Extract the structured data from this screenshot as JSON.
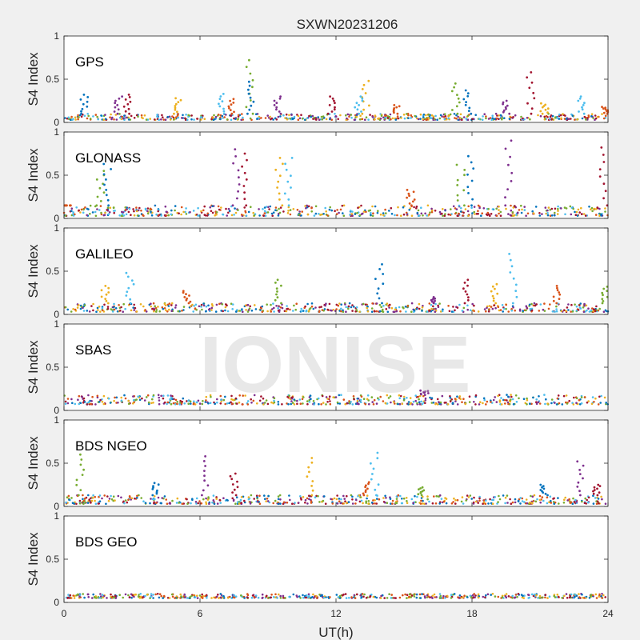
{
  "figure": {
    "title": "SXWN20231206",
    "watermark": "IONISE",
    "xlabel": "UT(h)",
    "xticks": [
      0,
      6,
      12,
      18,
      24
    ],
    "xlim": [
      0,
      24
    ]
  },
  "series_colors": [
    "#0072BD",
    "#D95319",
    "#EDB120",
    "#7E2F8E",
    "#77AC30",
    "#4DBEEE",
    "#A2142F"
  ],
  "chart_data": [
    {
      "type": "scatter",
      "panel": "GPS",
      "ylabel": "S4 Index",
      "ylim": [
        0,
        1
      ],
      "yticks": [
        0,
        0.5,
        1
      ],
      "xlim": [
        0,
        24
      ],
      "grid": false,
      "baseline": [
        0.03,
        0.1
      ],
      "peaks": [
        {
          "x": 0.9,
          "y": 0.32
        },
        {
          "x": 2.4,
          "y": 0.3
        },
        {
          "x": 2.8,
          "y": 0.32
        },
        {
          "x": 5.0,
          "y": 0.28
        },
        {
          "x": 6.9,
          "y": 0.33
        },
        {
          "x": 7.4,
          "y": 0.27
        },
        {
          "x": 8.2,
          "y": 0.72
        },
        {
          "x": 8.2,
          "y": 0.47
        },
        {
          "x": 9.4,
          "y": 0.3
        },
        {
          "x": 11.8,
          "y": 0.3
        },
        {
          "x": 13.3,
          "y": 0.48
        },
        {
          "x": 13.0,
          "y": 0.3
        },
        {
          "x": 14.7,
          "y": 0.2
        },
        {
          "x": 17.3,
          "y": 0.45
        },
        {
          "x": 17.8,
          "y": 0.37
        },
        {
          "x": 19.5,
          "y": 0.25
        },
        {
          "x": 20.6,
          "y": 0.58
        },
        {
          "x": 21.2,
          "y": 0.22
        },
        {
          "x": 22.8,
          "y": 0.3
        },
        {
          "x": 23.9,
          "y": 0.18
        }
      ]
    },
    {
      "type": "scatter",
      "panel": "GLONASS",
      "ylabel": "S4 Index",
      "ylim": [
        0,
        1
      ],
      "yticks": [
        0,
        0.5,
        1
      ],
      "xlim": [
        0,
        24
      ],
      "grid": false,
      "baseline": [
        0.03,
        0.15
      ],
      "peaks": [
        {
          "x": 0.2,
          "y": 0.15
        },
        {
          "x": 1.6,
          "y": 0.55
        },
        {
          "x": 1.9,
          "y": 0.63
        },
        {
          "x": 7.6,
          "y": 0.8
        },
        {
          "x": 7.9,
          "y": 0.75
        },
        {
          "x": 9.5,
          "y": 0.7
        },
        {
          "x": 9.9,
          "y": 0.7
        },
        {
          "x": 15.3,
          "y": 0.33
        },
        {
          "x": 17.5,
          "y": 0.62
        },
        {
          "x": 17.9,
          "y": 0.72
        },
        {
          "x": 19.6,
          "y": 0.9
        },
        {
          "x": 23.8,
          "y": 0.82
        }
      ]
    },
    {
      "type": "scatter",
      "panel": "GALILEO",
      "ylabel": "S4 Index",
      "ylim": [
        0,
        1
      ],
      "yticks": [
        0,
        0.5,
        1
      ],
      "xlim": [
        0,
        24
      ],
      "grid": false,
      "baseline": [
        0.03,
        0.13
      ],
      "peaks": [
        {
          "x": 1.8,
          "y": 0.33
        },
        {
          "x": 2.9,
          "y": 0.48
        },
        {
          "x": 5.4,
          "y": 0.27
        },
        {
          "x": 9.5,
          "y": 0.4
        },
        {
          "x": 13.9,
          "y": 0.58
        },
        {
          "x": 16.2,
          "y": 0.2
        },
        {
          "x": 17.8,
          "y": 0.4
        },
        {
          "x": 19.0,
          "y": 0.35
        },
        {
          "x": 19.8,
          "y": 0.7
        },
        {
          "x": 21.7,
          "y": 0.33
        },
        {
          "x": 23.9,
          "y": 0.32
        }
      ]
    },
    {
      "type": "scatter",
      "panel": "SBAS",
      "ylabel": "S4 Index",
      "ylim": [
        0,
        1
      ],
      "yticks": [
        0,
        0.5,
        1
      ],
      "xlim": [
        0,
        24
      ],
      "grid": false,
      "baseline": [
        0.07,
        0.18
      ],
      "peaks": [
        {
          "x": 15.9,
          "y": 0.23
        }
      ]
    },
    {
      "type": "scatter",
      "panel": "BDS NGEO",
      "ylabel": "S4 Index",
      "ylim": [
        0,
        1
      ],
      "yticks": [
        0,
        0.5,
        1
      ],
      "xlim": [
        0,
        24
      ],
      "grid": false,
      "baseline": [
        0.03,
        0.13
      ],
      "peaks": [
        {
          "x": 0.7,
          "y": 0.6
        },
        {
          "x": 4.0,
          "y": 0.27
        },
        {
          "x": 6.2,
          "y": 0.58
        },
        {
          "x": 7.5,
          "y": 0.38
        },
        {
          "x": 10.9,
          "y": 0.56
        },
        {
          "x": 13.7,
          "y": 0.62
        },
        {
          "x": 13.3,
          "y": 0.28
        },
        {
          "x": 15.8,
          "y": 0.22
        },
        {
          "x": 21.2,
          "y": 0.25
        },
        {
          "x": 22.8,
          "y": 0.52
        },
        {
          "x": 23.5,
          "y": 0.25
        }
      ]
    },
    {
      "type": "scatter",
      "panel": "BDS GEO",
      "ylabel": "S4 Index",
      "ylim": [
        0,
        1
      ],
      "yticks": [
        0,
        0.5,
        1
      ],
      "xlim": [
        0,
        24
      ],
      "grid": false,
      "baseline": [
        0.05,
        0.1
      ],
      "peaks": []
    }
  ]
}
